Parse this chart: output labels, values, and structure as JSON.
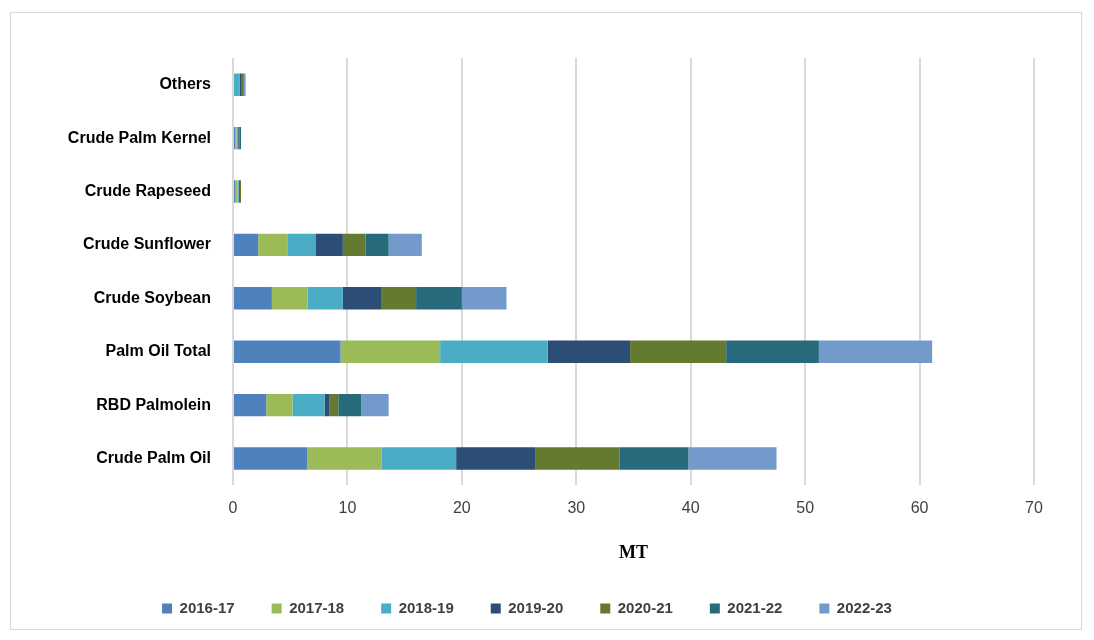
{
  "chart_data": {
    "type": "bar",
    "orientation": "horizontal",
    "stacked": true,
    "categories": [
      "Others",
      "Crude Palm Kernel",
      "Crude Rapeseed",
      "Crude Sunflower",
      "Crude Soybean",
      "Palm Oil Total",
      "RBD Palmolein",
      "Crude Palm Oil"
    ],
    "series": [
      {
        "name": "2016-17",
        "color": "#4f81bd",
        "values": [
          0,
          0.2,
          0.2,
          2.2,
          3.4,
          9.4,
          2.9,
          6.5
        ]
      },
      {
        "name": "2017-18",
        "color": "#9bbb59",
        "values": [
          0,
          0.1,
          0.2,
          2.6,
          3.1,
          8.7,
          2.3,
          6.5
        ]
      },
      {
        "name": "2018-19",
        "color": "#4bacc6",
        "values": [
          0.6,
          0.1,
          0.1,
          2.4,
          3.1,
          9.4,
          2.8,
          6.5
        ]
      },
      {
        "name": "2019-20",
        "color": "#2c4d75",
        "values": [
          0.1,
          0.1,
          0.1,
          2.4,
          3.4,
          7.2,
          0.4,
          6.9
        ]
      },
      {
        "name": "2020-21",
        "color": "#647a30",
        "values": [
          0.2,
          0.1,
          0.1,
          2.0,
          3.0,
          8.4,
          0.8,
          7.4
        ]
      },
      {
        "name": "2021-22",
        "color": "#276a7c",
        "values": [
          0.1,
          0.1,
          0,
          2.0,
          4.0,
          8.1,
          2.0,
          6.0
        ]
      },
      {
        "name": "2022-23",
        "color": "#729aca",
        "values": [
          0.1,
          0,
          0,
          2.9,
          3.9,
          9.9,
          2.4,
          7.7
        ]
      }
    ],
    "xlim": [
      0,
      70
    ],
    "xticks": [
      0,
      10,
      20,
      30,
      40,
      50,
      60,
      70
    ],
    "xlabel": "MT",
    "grid": "x",
    "legend": "bottom"
  }
}
